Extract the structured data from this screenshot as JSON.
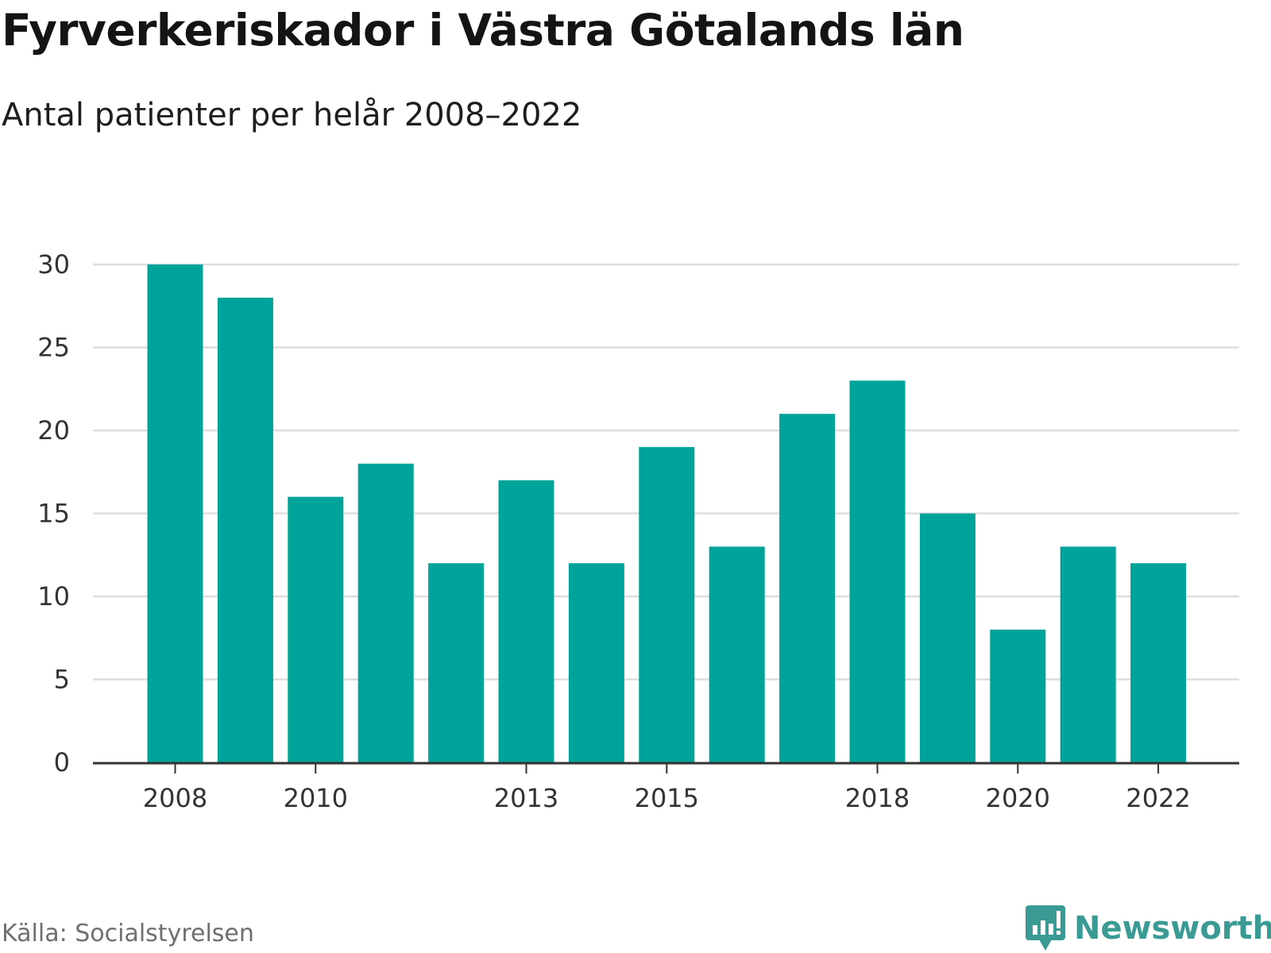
{
  "chart_data": {
    "type": "bar",
    "title": "Fyrverkeriskador i Västra Götalands län",
    "subtitle": "Antal patienter per helår 2008–2022",
    "categories": [
      "2008",
      "2009",
      "2010",
      "2011",
      "2012",
      "2013",
      "2014",
      "2015",
      "2016",
      "2017",
      "2018",
      "2019",
      "2020",
      "2021",
      "2022"
    ],
    "values": [
      30,
      28,
      16,
      18,
      12,
      17,
      12,
      19,
      13,
      21,
      23,
      15,
      8,
      13,
      12
    ],
    "x_tick_labels": [
      "2008",
      "2010",
      "2013",
      "2015",
      "2018",
      "2020",
      "2022"
    ],
    "y_ticks": [
      0,
      5,
      10,
      15,
      20,
      25,
      30
    ],
    "ylim": [
      0,
      30
    ],
    "xlabel": "",
    "ylabel": "",
    "grid": true,
    "bar_color": "#00a39a"
  },
  "footer": {
    "source": "Källa: Socialstyrelsen",
    "brand": "Newsworthy",
    "brand_icon": "newsworthy-logo-icon",
    "brand_color": "#3a9a94"
  }
}
